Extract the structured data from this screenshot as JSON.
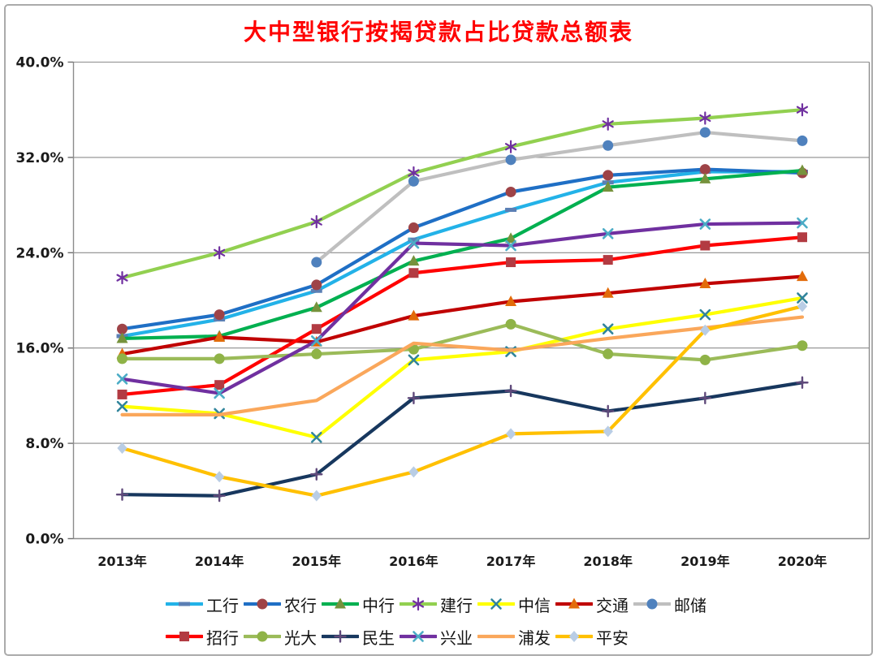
{
  "title": "大中型银行按揭贷款占比贷款总额表",
  "title_color": "#FF0000",
  "chart_data": {
    "type": "line",
    "title": "大中型银行按揭贷款占比贷款总额表",
    "xlabel": "",
    "ylabel": "",
    "categories": [
      "2013年",
      "2014年",
      "2015年",
      "2016年",
      "2017年",
      "2018年",
      "2019年",
      "2020年"
    ],
    "yticks": [
      "0.0%",
      "8.0%",
      "16.0%",
      "24.0%",
      "32.0%",
      "40.0%"
    ],
    "ylim": [
      0,
      40
    ],
    "grid": "horizontal",
    "legend_position": "bottom",
    "legend_rows": [
      [
        "工行",
        "农行",
        "中行",
        "建行",
        "中信",
        "交通",
        "邮储"
      ],
      [
        "招行",
        "光大",
        "民生",
        "兴业",
        "浦发",
        "平安"
      ]
    ],
    "series": [
      {
        "name": "工行",
        "line_color": "#23B2E8",
        "marker": "dash",
        "marker_color": "#5B7FB4",
        "values": [
          17.0,
          18.4,
          20.8,
          25.1,
          27.6,
          29.9,
          30.8,
          30.8
        ]
      },
      {
        "name": "农行",
        "line_color": "#1F6FC5",
        "marker": "circle",
        "marker_color": "#9E4347",
        "values": [
          17.6,
          18.8,
          21.3,
          26.1,
          29.1,
          30.5,
          31.0,
          30.7
        ]
      },
      {
        "name": "中行",
        "line_color": "#00B050",
        "marker": "triangle",
        "marker_color": "#76923C",
        "values": [
          16.8,
          17.0,
          19.4,
          23.3,
          25.2,
          29.5,
          30.2,
          30.9
        ]
      },
      {
        "name": "建行",
        "line_color": "#92D050",
        "marker": "asterisk",
        "marker_color": "#7030A0",
        "values": [
          21.9,
          24.0,
          26.6,
          30.7,
          32.9,
          34.8,
          35.3,
          36.0
        ]
      },
      {
        "name": "中信",
        "line_color": "#FFFF00",
        "marker": "x",
        "marker_color": "#31859C",
        "values": [
          11.1,
          10.5,
          8.5,
          15.0,
          15.7,
          17.6,
          18.8,
          20.2
        ]
      },
      {
        "name": "交通",
        "line_color": "#C00000",
        "marker": "triangle",
        "marker_color": "#E26B0A",
        "values": [
          15.5,
          16.9,
          16.5,
          18.7,
          19.9,
          20.6,
          21.4,
          22.0
        ]
      },
      {
        "name": "邮储",
        "line_color": "#BFBFBF",
        "marker": "circle",
        "marker_color": "#4F81BD",
        "values": [
          null,
          null,
          23.2,
          30.0,
          31.8,
          33.0,
          34.1,
          33.4
        ]
      },
      {
        "name": "招行",
        "line_color": "#FF0000",
        "marker": "square",
        "marker_color": "#B23B42",
        "values": [
          12.1,
          12.9,
          17.6,
          22.3,
          23.2,
          23.4,
          24.6,
          25.3
        ]
      },
      {
        "name": "光大",
        "line_color": "#9BBB59",
        "marker": "circle",
        "marker_color": "#8FB347",
        "values": [
          15.1,
          15.1,
          15.5,
          15.9,
          18.0,
          15.5,
          15.0,
          16.2
        ]
      },
      {
        "name": "民生",
        "line_color": "#17375E",
        "marker": "plus",
        "marker_color": "#604A7B",
        "values": [
          3.7,
          3.6,
          5.4,
          11.8,
          12.4,
          10.7,
          11.8,
          13.1
        ]
      },
      {
        "name": "兴业",
        "line_color": "#7030A0",
        "marker": "x",
        "marker_color": "#4BACC6",
        "values": [
          13.4,
          12.2,
          16.6,
          24.8,
          24.6,
          25.6,
          26.4,
          26.5
        ]
      },
      {
        "name": "浦发",
        "line_color": "#FAA75B",
        "marker": "none",
        "marker_color": "#FAA75B",
        "values": [
          10.4,
          10.4,
          11.6,
          16.4,
          15.8,
          16.8,
          17.7,
          18.6
        ]
      },
      {
        "name": "平安",
        "line_color": "#FFC000",
        "marker": "diamond",
        "marker_color": "#B9CDE5",
        "values": [
          7.6,
          5.2,
          3.6,
          5.6,
          8.8,
          9.0,
          17.5,
          19.5
        ]
      }
    ]
  }
}
